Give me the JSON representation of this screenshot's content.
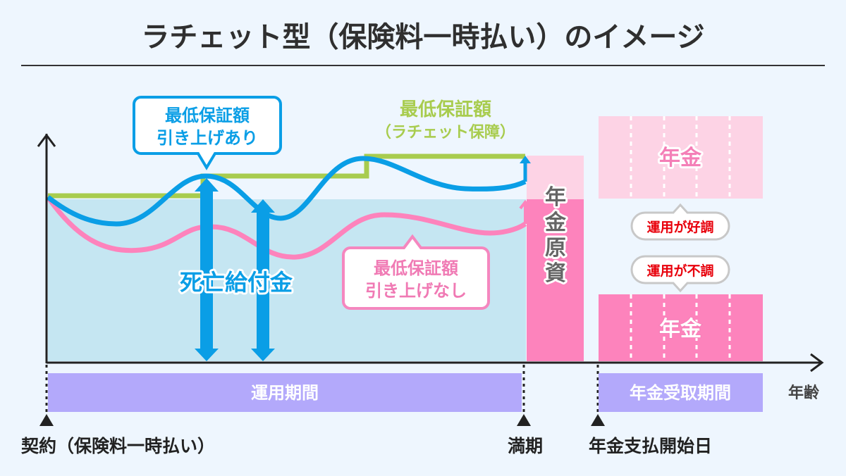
{
  "title": "ラチェット型（保険料一時払い）のイメージ",
  "callout_with_raise": {
    "line1": "最低保証額",
    "line2": "引き上げあり"
  },
  "callout_ratchet": {
    "line1": "最低保証額",
    "line2": "（ラチェット保障）"
  },
  "callout_without_raise": {
    "line1": "最低保証額",
    "line2": "引き上げなし"
  },
  "death_benefit": "死亡給付金",
  "pension_fund": [
    "年",
    "金",
    "原",
    "資"
  ],
  "pension_good": "年金",
  "pension_bad": "年金",
  "bubble_good": "運用が好調",
  "bubble_bad": "運用が不調",
  "period_investment": "運用期間",
  "period_receipt": "年金受取期間",
  "x_axis_label": "年齢",
  "milestones": {
    "contract": "契約（保険料一時払い）",
    "maturity": "満期",
    "payout_start": "年金支払開始日"
  },
  "colors": {
    "blue": "#0a9ee6",
    "green": "#a8cc4e",
    "pink": "#fd83bc",
    "light_pink": "#fdd3e5",
    "purple": "#b3a9fb",
    "area": "#c5e6f2",
    "red_text": "#e8000b"
  }
}
